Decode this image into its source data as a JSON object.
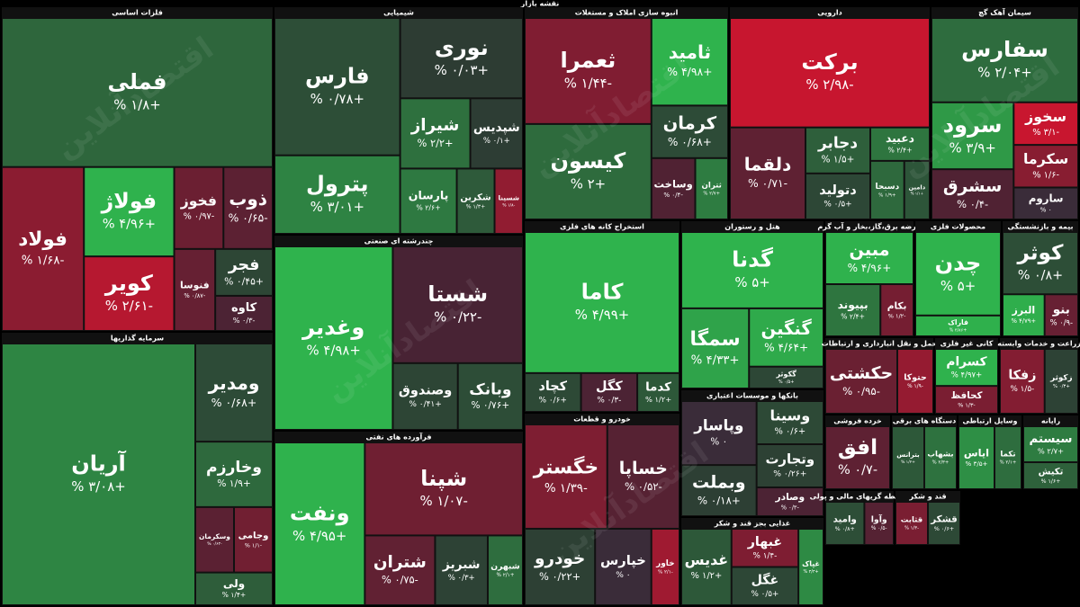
{
  "chart_data": {
    "type": "treemap",
    "title": "نقشه بازار",
    "watermark": "اقتصادآنلاین",
    "sectors": [
      {
        "name": "فلزات اساسی",
        "tiles": [
          {
            "name": "فملی",
            "size": 30,
            "change": 1.8,
            "value_label": "+۱/۸ %"
          },
          {
            "name": "فولاد",
            "size": 10,
            "change": -1.68,
            "value_label": "-۱/۶۸ %"
          },
          {
            "name": "فولاژ",
            "size": 6,
            "change": 4.96,
            "value_label": "+۴/۹۶ %"
          },
          {
            "name": "کویر",
            "size": 5,
            "change": -2.61,
            "value_label": "-۲/۶۱ %"
          },
          {
            "name": "فخوز",
            "size": 3,
            "change": -0.97,
            "value_label": "-۰/۹۷ %"
          },
          {
            "name": "ذوب",
            "size": 3,
            "change": -0.65,
            "value_label": "-۰/۶۵ %"
          },
          {
            "name": "فنوسا",
            "size": 2.5,
            "change": -0.87,
            "value_label": "-۰/۸۷ %"
          },
          {
            "name": "فجر",
            "size": 2,
            "change": 0.45,
            "value_label": "+۰/۴۵ %"
          },
          {
            "name": "کاوه",
            "size": 1.5,
            "change": -0.3,
            "value_label": "-۰/۳ %"
          }
        ]
      },
      {
        "name": "سرمایه گذاریها",
        "tiles": [
          {
            "name": "آریان",
            "size": 40,
            "change": 3.08,
            "value_label": "+۳/۰۸ %"
          },
          {
            "name": "ومدیر",
            "size": 6,
            "change": 0.68,
            "value_label": "+۰/۶۸ %"
          },
          {
            "name": "وخارزم",
            "size": 4,
            "change": 1.9,
            "value_label": "+۱/۹ %"
          },
          {
            "name": "وسکرمان",
            "size": 2,
            "change": -0.62,
            "value_label": "-۰/۶۲ %"
          },
          {
            "name": "وجامی",
            "size": 2,
            "change": -1.1,
            "value_label": "-۱/۱ %"
          },
          {
            "name": "ولی",
            "size": 2,
            "change": 1.4,
            "value_label": "+۱/۴ %"
          }
        ]
      },
      {
        "name": "شیمیایی",
        "tiles": [
          {
            "name": "فارس",
            "size": 14,
            "change": 0.78,
            "value_label": "+۰/۷۸ %"
          },
          {
            "name": "پترول",
            "size": 8,
            "change": 3.01,
            "value_label": "+۳/۰۱ %"
          },
          {
            "name": "نوری",
            "size": 8,
            "change": 0.03,
            "value_label": "+۰/۰۳ %"
          },
          {
            "name": "شیراز",
            "size": 4,
            "change": 2.2,
            "value_label": "+۲/۲ %"
          },
          {
            "name": "شپدیس",
            "size": 3,
            "change": 0.1,
            "value_label": "+۰/۱ %"
          },
          {
            "name": "پارسان",
            "size": 3,
            "change": 2.6,
            "value_label": "+۲/۶ %"
          },
          {
            "name": "شکربن",
            "size": 2,
            "change": 1.3,
            "value_label": "+۱/۳ %"
          },
          {
            "name": "شسینا",
            "size": 1.5,
            "change": -1.8,
            "value_label": "-۱/۸ %"
          }
        ]
      },
      {
        "name": "چندرشته ای صنعتی",
        "tiles": [
          {
            "name": "وغدیر",
            "size": 20,
            "change": 4.98,
            "value_label": "+۴/۹۸ %"
          },
          {
            "name": "شستا",
            "size": 14,
            "change": -0.22,
            "value_label": "-۰/۲۲ %"
          },
          {
            "name": "وصندوق",
            "size": 4,
            "change": 0.41,
            "value_label": "+۰/۴۱ %"
          },
          {
            "name": "وبانک",
            "size": 4,
            "change": 0.76,
            "value_label": "+۰/۷۶ %"
          }
        ]
      },
      {
        "name": "فرآورده های نفتی",
        "tiles": [
          {
            "name": "ونفت",
            "size": 12,
            "change": 4.95,
            "value_label": "+۴/۹۵ %"
          },
          {
            "name": "شپنا",
            "size": 12,
            "change": -1.07,
            "value_label": "-۱/۰۷ %"
          },
          {
            "name": "شتران",
            "size": 4,
            "change": -0.75,
            "value_label": "-۰/۷۵ %"
          },
          {
            "name": "شبریز",
            "size": 3,
            "change": 0.3,
            "value_label": "+۰/۳ %"
          },
          {
            "name": "شبهرن",
            "size": 2,
            "change": 2.1,
            "value_label": "+۲/۱ %"
          }
        ]
      },
      {
        "name": "انبوه سازی املاک و مستغلات",
        "tiles": [
          {
            "name": "ثعمرا",
            "size": 10,
            "change": -1.44,
            "value_label": "-۱/۴۴ %"
          },
          {
            "name": "کیسون",
            "size": 9,
            "change": 2,
            "value_label": "+۲ %"
          },
          {
            "name": "ثامید",
            "size": 5,
            "change": 4.98,
            "value_label": "+۴/۹۸ %"
          },
          {
            "name": "کرمان",
            "size": 3,
            "change": 0.68,
            "value_label": "+۰/۶۸ %"
          },
          {
            "name": "وساخت",
            "size": 2,
            "change": -0.4,
            "value_label": "-۰/۴ %"
          },
          {
            "name": "ثتران",
            "size": 1.5,
            "change": 2.7,
            "value_label": "+۲/۷ %"
          }
        ]
      },
      {
        "name": "دارویی",
        "tiles": [
          {
            "name": "برکت",
            "size": 22,
            "change": -2.98,
            "value_label": "-۲/۹۸ %"
          },
          {
            "name": "دلقما",
            "size": 7,
            "change": -0.71,
            "value_label": "-۰/۷۱ %"
          },
          {
            "name": "دجابر",
            "size": 3,
            "change": 1.5,
            "value_label": "+۱/۵ %"
          },
          {
            "name": "دتولید",
            "size": 3,
            "change": 0.5,
            "value_label": "+۰/۵ %"
          },
          {
            "name": "دعبید",
            "size": 2,
            "change": 2.4,
            "value_label": "+۲/۴ %"
          },
          {
            "name": "دسبحا",
            "size": 2,
            "change": 1.9,
            "value_label": "+۱/۹ %"
          },
          {
            "name": "دامین",
            "size": 1.5,
            "change": 1.1,
            "value_label": "+۱/۱ %"
          }
        ]
      },
      {
        "name": "سیمان آهک گچ",
        "tiles": [
          {
            "name": "سفارس",
            "size": 9,
            "change": 2.04,
            "value_label": "+۲/۰۴ %"
          },
          {
            "name": "سرود",
            "size": 4,
            "change": 3.9,
            "value_label": "+۳/۹ %"
          },
          {
            "name": "سشرق",
            "size": 3,
            "change": -0.4,
            "value_label": "-۰/۴ %"
          },
          {
            "name": "سخوز",
            "size": 2,
            "change": -3.1,
            "value_label": "-۳/۱ %"
          },
          {
            "name": "سکرما",
            "size": 2,
            "change": -1.6,
            "value_label": "-۱/۶ %"
          },
          {
            "name": "ساروم",
            "size": 1.5,
            "change": 0,
            "value_label": "۰ %"
          }
        ]
      },
      {
        "name": "استخراج کانه های فلزی",
        "tiles": [
          {
            "name": "کاما",
            "size": 20,
            "change": 4.99,
            "value_label": "+۴/۹۹ %"
          },
          {
            "name": "کچاد",
            "size": 2,
            "change": 0.6,
            "value_label": "+۰/۶ %"
          },
          {
            "name": "کگل",
            "size": 2,
            "change": -0.3,
            "value_label": "-۰/۳ %"
          },
          {
            "name": "کدما",
            "size": 1.5,
            "change": 1.2,
            "value_label": "+۱/۲ %"
          }
        ]
      },
      {
        "name": "هتل و رستوران",
        "tiles": [
          {
            "name": "گدنا",
            "size": 10,
            "change": 5,
            "value_label": "+۵ %"
          },
          {
            "name": "سمگا",
            "size": 5,
            "change": 4.33,
            "value_label": "+۴/۳۳ %"
          },
          {
            "name": "گنگین",
            "size": 4,
            "change": 4.64,
            "value_label": "+۴/۶۴ %"
          },
          {
            "name": "گکوثر",
            "size": 1.5,
            "change": 0.5,
            "value_label": "+۰/۵ %"
          }
        ]
      },
      {
        "name": "عرضه برق،گاز،بخار و آب گرم",
        "tiles": [
          {
            "name": "مبین",
            "size": 4,
            "change": 4.96,
            "value_label": "+۴/۹۶ %"
          },
          {
            "name": "بپیوند",
            "size": 2.5,
            "change": 2.4,
            "value_label": "+۲/۴ %"
          },
          {
            "name": "بکام",
            "size": 1.5,
            "change": -1.2,
            "value_label": "-۱/۲ %"
          }
        ]
      },
      {
        "name": "محصولات فلزی",
        "tiles": [
          {
            "name": "چدن",
            "size": 6,
            "change": 5,
            "value_label": "+۵ %"
          },
          {
            "name": "فاراک",
            "size": 1.5,
            "change": 4.86,
            "value_label": "+۴/۸۶ %"
          }
        ]
      },
      {
        "name": "بیمه و بازنشستگی",
        "tiles": [
          {
            "name": "کوثر",
            "size": 4,
            "change": 0.8,
            "value_label": "+۰/۸ %"
          },
          {
            "name": "البرز",
            "size": 1.5,
            "change": 4.79,
            "value_label": "+۴/۷۹ %"
          },
          {
            "name": "بنو",
            "size": 1.2,
            "change": -0.9,
            "value_label": "-۰/۹ %"
          }
        ]
      },
      {
        "name": "بانکها و موسسات اعتباری",
        "tiles": [
          {
            "name": "وپاسار",
            "size": 5,
            "change": 0,
            "value_label": "۰ %"
          },
          {
            "name": "وبملت",
            "size": 4,
            "change": 0.18,
            "value_label": "+۰/۱۸ %"
          },
          {
            "name": "وسینا",
            "size": 3,
            "change": 0.6,
            "value_label": "+۰/۶ %"
          },
          {
            "name": "وتجارت",
            "size": 3,
            "change": 0.26,
            "value_label": "+۰/۲۶ %"
          },
          {
            "name": "وصادر",
            "size": 2,
            "change": -0.3,
            "value_label": "-۰/۳ %"
          }
        ]
      },
      {
        "name": "خودرو و قطعات",
        "tiles": [
          {
            "name": "خگستر",
            "size": 8,
            "change": -1.39,
            "value_label": "-۱/۳۹ %"
          },
          {
            "name": "خساپا",
            "size": 7,
            "change": -0.52,
            "value_label": "-۰/۵۲ %"
          },
          {
            "name": "خودرو",
            "size": 5,
            "change": 0.22,
            "value_label": "+۰/۲۲ %"
          },
          {
            "name": "خپارس",
            "size": 4,
            "change": 0,
            "value_label": "۰ %"
          },
          {
            "name": "خاور",
            "size": 2,
            "change": -2.1,
            "value_label": "-۲/۱ %"
          }
        ]
      },
      {
        "name": "حمل و نقل انبارداری و ارتباطات",
        "tiles": [
          {
            "name": "حکشتی",
            "size": 3,
            "change": -0.95,
            "value_label": "-۰/۹۵ %"
          },
          {
            "name": "حتوکا",
            "size": 1.5,
            "change": -1.9,
            "value_label": "-۱/۹ %"
          }
        ]
      },
      {
        "name": "کانی غیر فلزی",
        "tiles": [
          {
            "name": "کسرام",
            "size": 2,
            "change": 4.97,
            "value_label": "+۴/۹۷ %"
          },
          {
            "name": "کحافظ",
            "size": 1.5,
            "change": -1.3,
            "value_label": "-۱/۳ %"
          }
        ]
      },
      {
        "name": "زراعت و خدمات وابسته",
        "tiles": [
          {
            "name": "زفکا",
            "size": 2,
            "change": -1.5,
            "value_label": "-۱/۵ %"
          },
          {
            "name": "زکوثر",
            "size": 1.5,
            "change": 0.3,
            "value_label": "+۰/۳ %"
          }
        ]
      },
      {
        "name": "خرده فروشی",
        "tiles": [
          {
            "name": "افق",
            "size": 3,
            "change": -0.7,
            "value_label": "-۰/۷ %"
          }
        ]
      },
      {
        "name": "دستگاه های برقی",
        "tiles": [
          {
            "name": "بترانس",
            "size": 2,
            "change": 1.2,
            "value_label": "+۱/۲ %"
          },
          {
            "name": "بشهاب",
            "size": 2,
            "change": 2.3,
            "value_label": "+۲/۳ %"
          }
        ]
      },
      {
        "name": "وسایل ارتباطی",
        "tiles": [
          {
            "name": "ایاس",
            "size": 2,
            "change": 3.5,
            "value_label": "+۳/۵ %"
          },
          {
            "name": "تکما",
            "size": 1.5,
            "change": 2.1,
            "value_label": "+۲/۱ %"
          }
        ]
      },
      {
        "name": "رایانه",
        "tiles": [
          {
            "name": "سیستم",
            "size": 2,
            "change": 2.7,
            "value_label": "+۲/۷ %"
          },
          {
            "name": "تکیش",
            "size": 1.5,
            "change": 1.6,
            "value_label": "+۱/۶ %"
          }
        ]
      },
      {
        "name": "غذایی بجز قند و شکر",
        "tiles": [
          {
            "name": "غدیس",
            "size": 3,
            "change": 1.2,
            "value_label": "+۱/۲ %"
          },
          {
            "name": "غبهار",
            "size": 2,
            "change": -1.4,
            "value_label": "-۱/۴ %"
          },
          {
            "name": "غگل",
            "size": 2,
            "change": 0.5,
            "value_label": "+۰/۵ %"
          },
          {
            "name": "غپاک",
            "size": 1.5,
            "change": 3.3,
            "value_label": "+۳/۳ %"
          }
        ]
      },
      {
        "name": "واسطه گریهای مالی و پولی",
        "tiles": [
          {
            "name": "وامید",
            "size": 2,
            "change": 0.8,
            "value_label": "+۰/۸ %"
          },
          {
            "name": "وآوا",
            "size": 1.5,
            "change": -0.5,
            "value_label": "-۰/۵ %"
          }
        ]
      },
      {
        "name": "قند و شکر",
        "tiles": [
          {
            "name": "قثابت",
            "size": 1.5,
            "change": -1.3,
            "value_label": "-۱/۳ %"
          },
          {
            "name": "قشکر",
            "size": 1.5,
            "change": 0.6,
            "value_label": "+۰/۶ %"
          }
        ]
      }
    ]
  }
}
